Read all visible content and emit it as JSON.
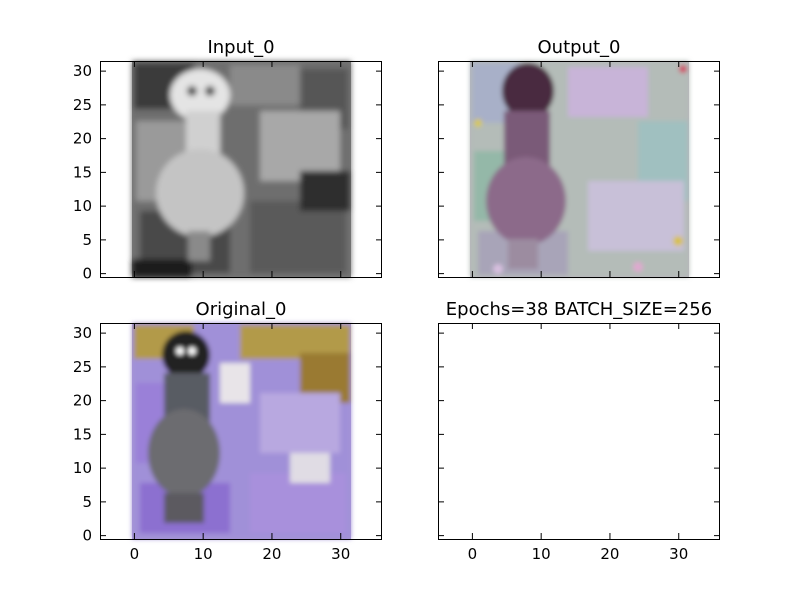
{
  "figure": {
    "background": "#ffffff"
  },
  "chart_data": [
    {
      "type": "image",
      "title": "Input_0",
      "xlim": [
        -5,
        36
      ],
      "ylim": [
        31.5,
        -0.5
      ],
      "image_extent": [
        -0.5,
        31.5
      ],
      "xticks": [],
      "yticks": [
        0,
        5,
        10,
        15,
        20,
        25,
        30
      ],
      "image": {
        "kind": "grayscale",
        "palette": [
          "#1c1c1c",
          "#5a5a5a",
          "#8c8c8c",
          "#b9b9b9",
          "#e6e6e6"
        ],
        "subject": "bird"
      }
    },
    {
      "type": "image",
      "title": "Output_0",
      "xlim": [
        -5,
        36
      ],
      "ylim": [
        31.5,
        -0.5
      ],
      "image_extent": [
        -0.5,
        31.5
      ],
      "xticks": [],
      "yticks": [],
      "image": {
        "kind": "color",
        "palette": [
          "#4a2a40",
          "#8c6a8a",
          "#a8c0b4",
          "#c8b4d8",
          "#d0c8c0"
        ],
        "subject": "bird"
      }
    },
    {
      "type": "image",
      "title": "Original_0",
      "xlim": [
        -5,
        36
      ],
      "ylim": [
        31.5,
        -0.5
      ],
      "image_extent": [
        -0.5,
        31.5
      ],
      "xticks": [
        0,
        10,
        20,
        30
      ],
      "yticks": [
        0,
        5,
        10,
        15,
        20,
        25,
        30
      ],
      "image": {
        "kind": "color",
        "palette": [
          "#2a2a2a",
          "#6c6c70",
          "#9a80d8",
          "#b29a48",
          "#e8e4e8"
        ],
        "subject": "bird"
      }
    },
    {
      "type": "empty",
      "title": "Epochs=38 BATCH_SIZE=256",
      "xlim": [
        -5,
        36
      ],
      "ylim": [
        31.5,
        -0.5
      ],
      "xticks": [
        0,
        10,
        20,
        30
      ],
      "yticks": []
    }
  ]
}
